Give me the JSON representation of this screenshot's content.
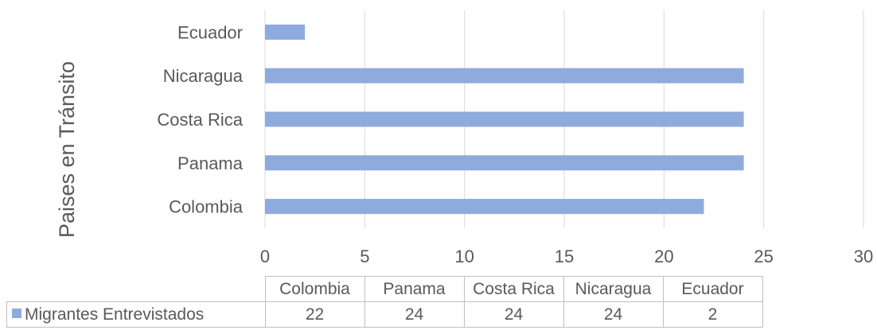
{
  "chart_data": {
    "type": "bar",
    "orientation": "horizontal",
    "categories": [
      "Colombia",
      "Panama",
      "Costa Rica",
      "Nicaragua",
      "Ecuador"
    ],
    "series": [
      {
        "name": "Migrantes Entrevistados",
        "values": [
          22,
          24,
          24,
          24,
          2
        ],
        "color": "#8faadc"
      }
    ],
    "ylabel": "Paises en Tránsito",
    "xlim": [
      0,
      30
    ],
    "xticks": [
      0,
      5,
      10,
      15,
      20,
      25,
      30
    ],
    "grid": "vertical",
    "data_table": true
  }
}
